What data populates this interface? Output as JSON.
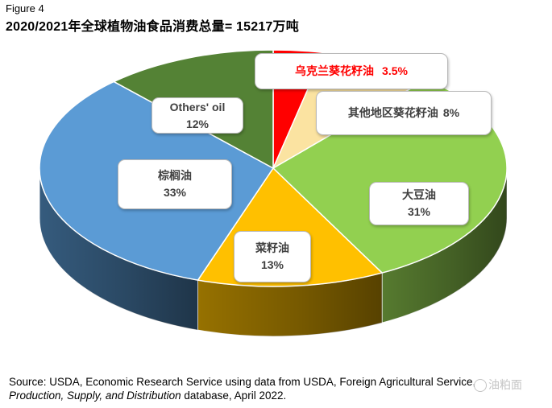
{
  "figure_label": "Figure 4",
  "title": "2020/2021年全球植物油食品消费总量= 15217万吨",
  "chart_data": {
    "type": "pie",
    "title": "2020/2021年全球植物油食品消费总量= 15217万吨",
    "total": 15217,
    "unit": "万吨",
    "slices": [
      {
        "name": "乌克兰葵花籽油",
        "value": 3.5,
        "label": "3.5%",
        "color": "#ff0000"
      },
      {
        "name": "其他地区葵花籽油",
        "value": 8,
        "label": "8%",
        "color": "#fbe3a1"
      },
      {
        "name": "大豆油",
        "value": 31,
        "label": "31%",
        "color": "#92d050"
      },
      {
        "name": "菜籽油",
        "value": 13,
        "label": "13%",
        "color": "#ffc000"
      },
      {
        "name": "棕榈油",
        "value": 33,
        "label": "33%",
        "color": "#5b9bd5"
      },
      {
        "name": "Others' oil",
        "value": 12,
        "label": "12%",
        "color": "#548235"
      }
    ]
  },
  "source": {
    "prefix": "Source: USDA, Economic Research Service using data from USDA, Foreign Agricultural Service,",
    "italic": "Production, Supply, and Distribution",
    "suffix": " database, April 2022."
  },
  "watermark": "油粕面"
}
